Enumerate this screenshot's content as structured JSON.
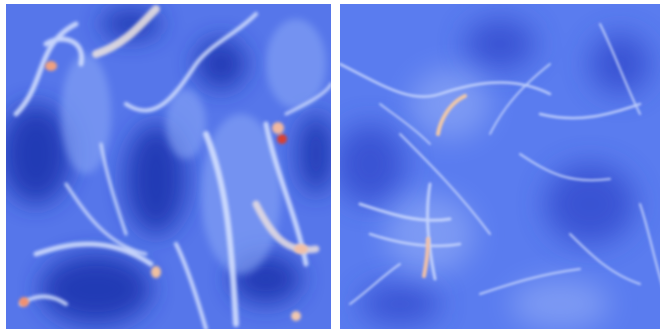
{
  "figure": {
    "panels": [
      {
        "id": "left",
        "description_colors": {
          "low": "#2a3fb8",
          "mid": "#5a7ef0",
          "high": "#d6e2ff",
          "peak": "#e06040"
        }
      },
      {
        "id": "right",
        "description_colors": {
          "low": "#3b55d8",
          "mid": "#6286f2",
          "high": "#dbe5ff",
          "peak": "#e88a5a"
        }
      }
    ]
  }
}
